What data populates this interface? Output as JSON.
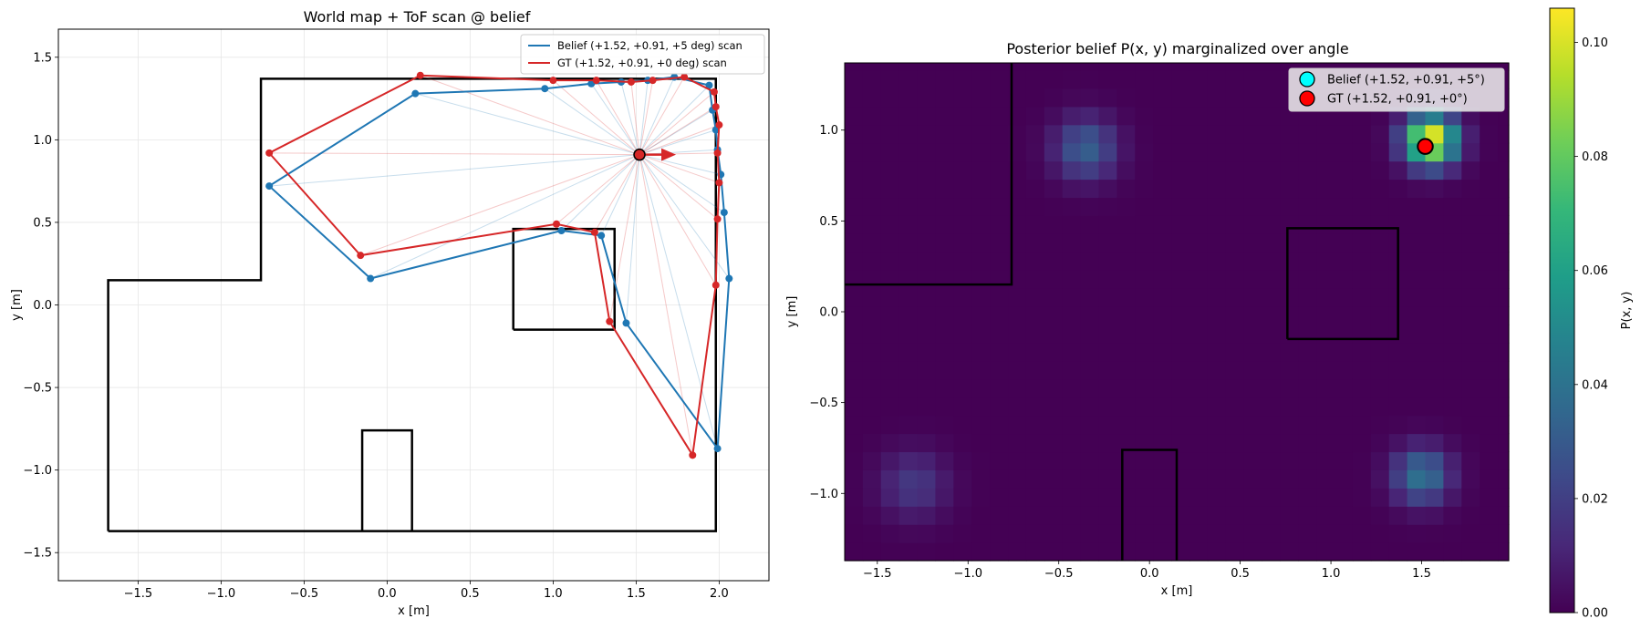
{
  "chart_data": [
    {
      "type": "line",
      "title": "World map + ToF scan @ belief",
      "xlabel": "x [m]",
      "ylabel": "y [m]",
      "xlim": [
        -1.98,
        2.3
      ],
      "ylim": [
        -1.67,
        1.67
      ],
      "xticks": [
        -1.5,
        -1.0,
        -0.5,
        0.0,
        0.5,
        1.0,
        1.5,
        2.0
      ],
      "yticks": [
        -1.5,
        -1.0,
        -0.5,
        0.0,
        0.5,
        1.0,
        1.5
      ],
      "xtick_labels": [
        "−1.5",
        "−1.0",
        "−0.5",
        "0.0",
        "0.5",
        "1.0",
        "1.5",
        "2.0"
      ],
      "ytick_labels": [
        "−1.5",
        "−1.0",
        "−0.5",
        "0.0",
        "0.5",
        "1.0",
        "1.5"
      ],
      "grid": true,
      "legend_position": "top-right",
      "walls": [
        [
          [
            -1.68,
            -1.37
          ],
          [
            1.98,
            -1.37
          ],
          [
            1.98,
            1.37
          ],
          [
            -0.76,
            1.37
          ],
          [
            -0.76,
            0.15
          ],
          [
            -1.68,
            0.15
          ],
          [
            -1.68,
            -1.37
          ]
        ],
        [
          [
            0.76,
            -0.15
          ],
          [
            1.37,
            -0.15
          ],
          [
            1.37,
            0.46
          ],
          [
            0.76,
            0.46
          ],
          [
            0.76,
            -0.15
          ]
        ],
        [
          [
            -0.15,
            -1.37
          ],
          [
            -0.15,
            -0.76
          ],
          [
            0.15,
            -0.76
          ],
          [
            0.15,
            -1.37
          ]
        ]
      ],
      "robot": {
        "x": 1.52,
        "y": 0.91,
        "heading_deg": 0,
        "fill": "#d62728"
      },
      "series": [
        {
          "name": "Belief (+1.52, +0.91, +5 deg) scan",
          "color": "#1f77b4",
          "points": [
            [
              1.99,
              0.94
            ],
            [
              2.01,
              0.79
            ],
            [
              2.03,
              0.56
            ],
            [
              2.06,
              0.16
            ],
            [
              1.99,
              -0.87
            ],
            [
              1.44,
              -0.11
            ],
            [
              1.29,
              0.42
            ],
            [
              1.05,
              0.45
            ],
            [
              -0.1,
              0.16
            ],
            [
              -0.71,
              0.72
            ],
            [
              0.17,
              1.28
            ],
            [
              0.95,
              1.31
            ],
            [
              1.23,
              1.34
            ],
            [
              1.41,
              1.35
            ],
            [
              1.57,
              1.36
            ],
            [
              1.73,
              1.38
            ],
            [
              1.94,
              1.33
            ],
            [
              1.96,
              1.18
            ],
            [
              1.98,
              1.06
            ],
            [
              1.99,
              0.94
            ]
          ]
        },
        {
          "name": "GT (+1.52, +0.91, +0 deg) scan",
          "color": "#d62728",
          "points": [
            [
              1.99,
              0.92
            ],
            [
              2.0,
              0.74
            ],
            [
              1.99,
              0.52
            ],
            [
              1.98,
              0.12
            ],
            [
              1.84,
              -0.91
            ],
            [
              1.34,
              -0.1
            ],
            [
              1.25,
              0.44
            ],
            [
              1.02,
              0.49
            ],
            [
              -0.16,
              0.3
            ],
            [
              -0.71,
              0.92
            ],
            [
              0.2,
              1.39
            ],
            [
              1.0,
              1.36
            ],
            [
              1.26,
              1.36
            ],
            [
              1.47,
              1.35
            ],
            [
              1.6,
              1.36
            ],
            [
              1.79,
              1.38
            ],
            [
              1.97,
              1.29
            ],
            [
              1.98,
              1.2
            ],
            [
              2.0,
              1.09
            ],
            [
              1.99,
              0.92
            ]
          ]
        }
      ]
    },
    {
      "type": "heatmap",
      "title": "Posterior belief P(x, y) marginalized over angle",
      "xlabel": "x [m]",
      "ylabel": "y [m]",
      "xlim": [
        -1.68,
        1.98
      ],
      "ylim": [
        -1.37,
        1.37
      ],
      "xticks": [
        -1.5,
        -1.0,
        -0.5,
        0.0,
        0.5,
        1.0,
        1.5
      ],
      "yticks": [
        -1.0,
        -0.5,
        0.0,
        0.5,
        1.0
      ],
      "xtick_labels": [
        "−1.5",
        "−1.0",
        "−0.5",
        "0.0",
        "0.5",
        "1.0",
        "1.5"
      ],
      "ytick_labels": [
        "−1.0",
        "−0.5",
        "0.0",
        "0.5",
        "1.0"
      ],
      "grid": false,
      "legend_position": "top-right",
      "colorbar": {
        "label": "P(x, y)",
        "min": 0.0,
        "max": 0.106,
        "ticks": [
          0.0,
          0.02,
          0.04,
          0.06,
          0.08,
          0.1
        ],
        "tick_labels": [
          "0.00",
          "0.02",
          "0.04",
          "0.06",
          "0.08",
          "0.10"
        ],
        "colormap": "viridis"
      },
      "cell_size_m": 0.1,
      "blobs": [
        {
          "x": 1.55,
          "y": 0.95,
          "peak": 0.106,
          "sigma": 0.1
        },
        {
          "x": -0.35,
          "y": 0.9,
          "peak": 0.032,
          "sigma": 0.12
        },
        {
          "x": 1.5,
          "y": -0.9,
          "peak": 0.04,
          "sigma": 0.11
        },
        {
          "x": -1.3,
          "y": -0.95,
          "peak": 0.018,
          "sigma": 0.13
        }
      ],
      "walls": [
        [
          [
            -1.68,
            0.15
          ],
          [
            -0.76,
            0.15
          ],
          [
            -0.76,
            1.37
          ]
        ],
        [
          [
            0.76,
            -0.15
          ],
          [
            1.37,
            -0.15
          ],
          [
            1.37,
            0.46
          ],
          [
            0.76,
            0.46
          ],
          [
            0.76,
            -0.15
          ]
        ],
        [
          [
            -0.15,
            -1.37
          ],
          [
            -0.15,
            -0.76
          ],
          [
            0.15,
            -0.76
          ],
          [
            0.15,
            -1.37
          ]
        ]
      ],
      "series": [
        {
          "name": "Belief (+1.52, +0.91, +5°)",
          "x": 1.52,
          "y": 0.91,
          "color": "#00ffff"
        },
        {
          "name": "GT (+1.52, +0.91, +0°)",
          "x": 1.52,
          "y": 0.91,
          "color": "#ff0000"
        }
      ]
    }
  ]
}
